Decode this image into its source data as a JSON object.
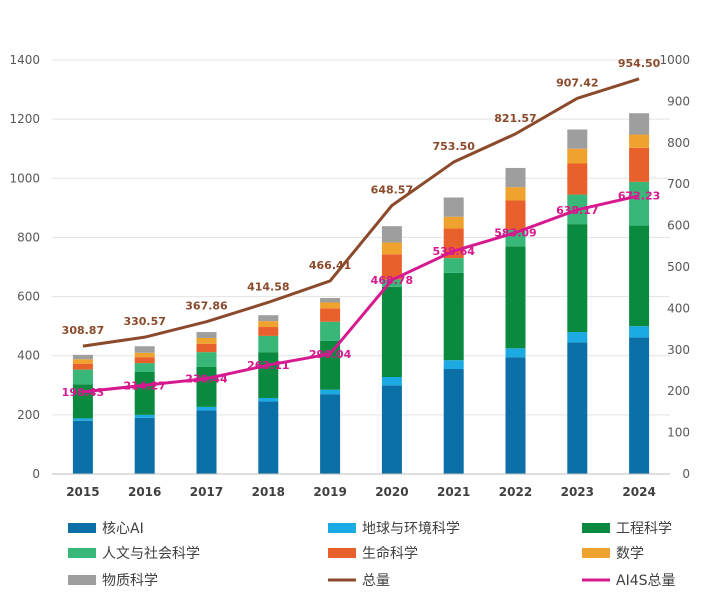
{
  "chart_data": {
    "type": "bar",
    "subtype": "stacked bar with line overlay",
    "categories": [
      "2015",
      "2016",
      "2017",
      "2018",
      "2019",
      "2020",
      "2021",
      "2022",
      "2023",
      "2024"
    ],
    "y_left": {
      "ylim": [
        0,
        1400
      ],
      "ticks": [
        "0",
        "200",
        "400",
        "600",
        "800",
        "1000",
        "1200",
        "1400"
      ]
    },
    "y_right": {
      "ylim": [
        0,
        1000
      ],
      "ticks": [
        "0",
        "100",
        "200",
        "300",
        "400",
        "500",
        "600",
        "700",
        "800",
        "900",
        "1000"
      ]
    },
    "grid": "horizontal",
    "legend_position": "bottom",
    "series": [
      {
        "name": "核心AI",
        "axis": "left",
        "color": "#0B6FA8",
        "values": [
          180,
          190,
          215,
          245,
          270,
          300,
          355,
          395,
          445,
          462
        ]
      },
      {
        "name": "地球与环境科学",
        "axis": "left",
        "color": "#1BAAE2",
        "values": [
          8,
          10,
          12,
          12,
          15,
          28,
          30,
          30,
          35,
          38
        ]
      },
      {
        "name": "工程科学",
        "axis": "left",
        "color": "#0A8A3E",
        "values": [
          115,
          145,
          135,
          155,
          165,
          305,
          295,
          345,
          365,
          340
        ]
      },
      {
        "name": "人文与社会科学",
        "axis": "left",
        "color": "#38B779",
        "values": [
          50,
          30,
          50,
          55,
          65,
          25,
          50,
          55,
          100,
          148
        ]
      },
      {
        "name": "生命科学",
        "axis": "left",
        "color": "#E8612C",
        "values": [
          20,
          20,
          28,
          30,
          45,
          85,
          100,
          100,
          105,
          115
        ]
      },
      {
        "name": "数学",
        "axis": "left",
        "color": "#F0A22E",
        "values": [
          15,
          15,
          20,
          20,
          20,
          40,
          40,
          45,
          50,
          45
        ]
      },
      {
        "name": "物质科学",
        "axis": "left",
        "color": "#9E9E9E",
        "values": [
          15,
          22,
          20,
          20,
          15,
          55,
          65,
          65,
          65,
          72
        ]
      },
      {
        "name": "总量",
        "axis": "right",
        "type": "line",
        "color": "#8B4A2B",
        "values": [
          308.87,
          330.57,
          367.86,
          414.58,
          466.41,
          648.57,
          753.5,
          821.57,
          907.42,
          954.5
        ],
        "labels": [
          "308.87",
          "330.57",
          "367.86",
          "414.58",
          "466.41",
          "648.57",
          "753.50",
          "821.57",
          "907.42",
          "954.50"
        ]
      },
      {
        "name": "AI4S总量",
        "axis": "right",
        "type": "line",
        "color": "#D6198F",
        "values": [
          198.43,
          214.27,
          230.44,
          263.11,
          290.04,
          468.78,
          538.64,
          583.09,
          638.17,
          672.23
        ],
        "labels": [
          "198.43",
          "214.27",
          "230.44",
          "263.11",
          "290.04",
          "468.78",
          "538.64",
          "583.09",
          "638.17",
          "672.23"
        ]
      }
    ],
    "title": "",
    "xlabel": "",
    "ylabel": ""
  }
}
